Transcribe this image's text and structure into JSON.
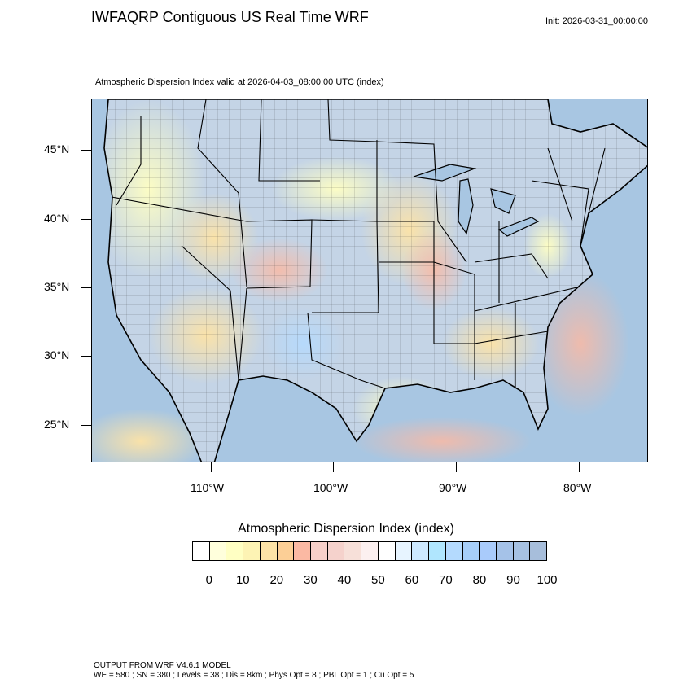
{
  "header": {
    "title": "IWFAQRP Contiguous US Real Time WRF",
    "init": "Init: 2026-03-31_00:00:00",
    "subtitle": "Atmospheric Dispersion Index valid at 2026-04-03_08:00:00 UTC   (index)"
  },
  "map": {
    "lat_labels": [
      "45°N",
      "40°N",
      "35°N",
      "30°N",
      "25°N"
    ],
    "lon_labels": [
      "110°W",
      "100°W",
      "90°W",
      "80°W"
    ],
    "ocean_color": "#a8c6e2",
    "land_base_color": "#c4d4e6"
  },
  "colorbar": {
    "title": "Atmospheric Dispersion Index  (index)",
    "labels": [
      "0",
      "10",
      "20",
      "30",
      "40",
      "50",
      "60",
      "70",
      "80",
      "90",
      "100"
    ],
    "colors": [
      "#ffffff",
      "#ffffdc",
      "#ffffc3",
      "#fdf3b4",
      "#fde3a6",
      "#fccf96",
      "#fbb9a3",
      "#f7d0c9",
      "#f5d2cc",
      "#f7e0d9",
      "#fcf0f0",
      "#ffffff",
      "#e7f4ff",
      "#cde9ff",
      "#b0e6fe",
      "#b4dafe",
      "#a6cef9",
      "#a9cbfb",
      "#a5c2e8",
      "#a6c1e2",
      "#a7bedb"
    ]
  },
  "footer": {
    "line1": "OUTPUT FROM WRF V4.6.1 MODEL",
    "line2": "WE = 580 ; SN = 380 ; Levels = 38 ; Dis = 8km ; Phys Opt = 8 ; PBL Opt = 1 ; Cu Opt = 5"
  }
}
